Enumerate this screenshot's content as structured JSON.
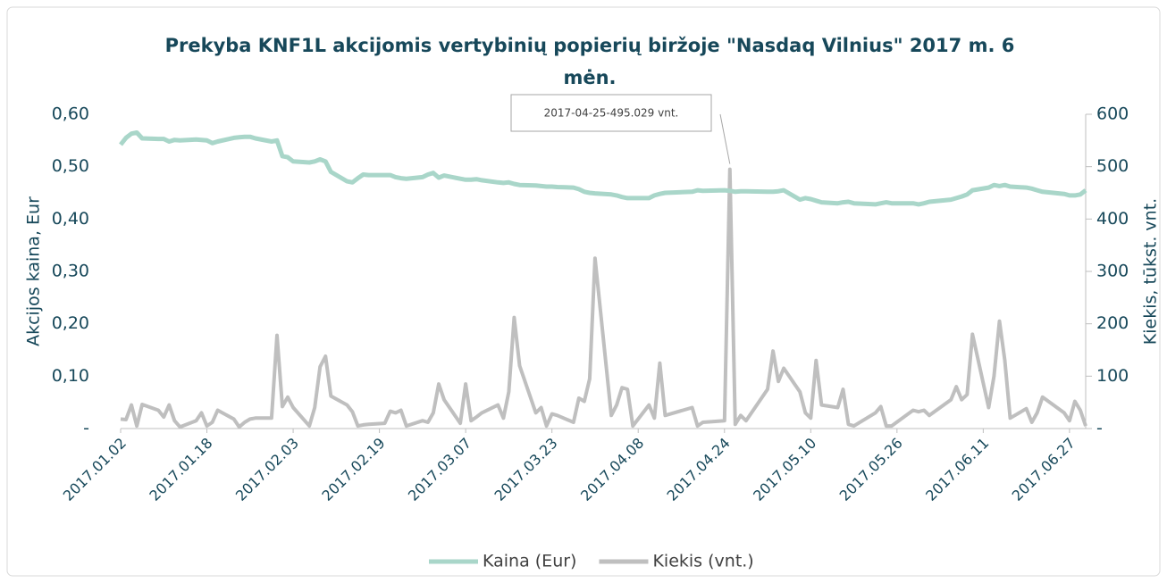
{
  "chart_data": {
    "type": "line",
    "title": "Prekyba KNF1L akcijomis vertybinių popierių biržoje \"Nasdaq Vilnius\" 2017 m. 6",
    "title_line2": "mėn.",
    "ylabel": "Akcijos kaina, Eur",
    "y2label": "Kiekis, tūkst. vnt.",
    "annotation": "2017-04-25-495.029 vnt.",
    "legend": "bottom",
    "x": [
      "2017.01.02",
      "2017.01.03",
      "2017.01.04",
      "2017.01.05",
      "2017.01.06",
      "2017.01.09",
      "2017.01.10",
      "2017.01.11",
      "2017.01.12",
      "2017.01.13",
      "2017.01.16",
      "2017.01.17",
      "2017.01.18",
      "2017.01.19",
      "2017.01.20",
      "2017.01.23",
      "2017.01.24",
      "2017.01.25",
      "2017.01.26",
      "2017.01.27",
      "2017.01.30",
      "2017.01.31",
      "2017.02.01",
      "2017.02.02",
      "2017.02.03",
      "2017.02.06",
      "2017.02.07",
      "2017.02.08",
      "2017.02.09",
      "2017.02.10",
      "2017.02.13",
      "2017.02.14",
      "2017.02.15",
      "2017.02.16",
      "2017.02.17",
      "2017.02.20",
      "2017.02.21",
      "2017.02.22",
      "2017.02.23",
      "2017.02.24",
      "2017.02.27",
      "2017.02.28",
      "2017.03.01",
      "2017.03.02",
      "2017.03.03",
      "2017.03.06",
      "2017.03.07",
      "2017.03.08",
      "2017.03.09",
      "2017.03.10",
      "2017.03.13",
      "2017.03.14",
      "2017.03.15",
      "2017.03.16",
      "2017.03.17",
      "2017.03.20",
      "2017.03.21",
      "2017.03.22",
      "2017.03.23",
      "2017.03.24",
      "2017.03.27",
      "2017.03.28",
      "2017.03.29",
      "2017.03.30",
      "2017.03.31",
      "2017.04.03",
      "2017.04.04",
      "2017.04.05",
      "2017.04.06",
      "2017.04.07",
      "2017.04.10",
      "2017.04.11",
      "2017.04.12",
      "2017.04.13",
      "2017.04.18",
      "2017.04.19",
      "2017.04.20",
      "2017.04.24",
      "2017.04.25",
      "2017.04.26",
      "2017.04.27",
      "2017.04.28",
      "2017.05.02",
      "2017.05.03",
      "2017.05.04",
      "2017.05.05",
      "2017.05.08",
      "2017.05.09",
      "2017.05.10",
      "2017.05.11",
      "2017.05.12",
      "2017.05.15",
      "2017.05.16",
      "2017.05.17",
      "2017.05.18",
      "2017.05.22",
      "2017.05.23",
      "2017.05.24",
      "2017.05.25",
      "2017.05.29",
      "2017.05.30",
      "2017.05.31",
      "2017.06.01",
      "2017.06.05",
      "2017.06.06",
      "2017.06.07",
      "2017.06.08",
      "2017.06.09",
      "2017.06.12",
      "2017.06.13",
      "2017.06.14",
      "2017.06.15",
      "2017.06.16",
      "2017.06.19",
      "2017.06.20",
      "2017.06.21",
      "2017.06.22",
      "2017.06.26",
      "2017.06.27",
      "2017.06.28",
      "2017.06.29",
      "2017.06.30"
    ],
    "series": [
      {
        "name": "Kaina (Eur)",
        "color": "#a9d6c9",
        "axis": "y",
        "values": [
          0.542,
          0.555,
          0.563,
          0.565,
          0.554,
          0.553,
          0.553,
          0.548,
          0.551,
          0.55,
          0.552,
          0.551,
          0.55,
          0.545,
          0.548,
          0.555,
          0.556,
          0.557,
          0.557,
          0.554,
          0.548,
          0.55,
          0.52,
          0.518,
          0.51,
          0.508,
          0.51,
          0.514,
          0.51,
          0.49,
          0.472,
          0.47,
          0.478,
          0.485,
          0.484,
          0.484,
          0.484,
          0.48,
          0.478,
          0.477,
          0.48,
          0.485,
          0.488,
          0.479,
          0.483,
          0.477,
          0.475,
          0.475,
          0.476,
          0.474,
          0.47,
          0.469,
          0.47,
          0.467,
          0.465,
          0.464,
          0.463,
          0.462,
          0.462,
          0.461,
          0.46,
          0.457,
          0.452,
          0.45,
          0.449,
          0.447,
          0.445,
          0.442,
          0.44,
          0.44,
          0.44,
          0.445,
          0.448,
          0.45,
          0.452,
          0.455,
          0.454,
          0.455,
          0.454,
          0.452,
          0.453,
          0.453,
          0.452,
          0.452,
          0.453,
          0.455,
          0.437,
          0.44,
          0.438,
          0.435,
          0.432,
          0.43,
          0.432,
          0.433,
          0.43,
          0.428,
          0.43,
          0.432,
          0.43,
          0.43,
          0.428,
          0.43,
          0.433,
          0.437,
          0.44,
          0.443,
          0.447,
          0.455,
          0.46,
          0.465,
          0.463,
          0.465,
          0.462,
          0.46,
          0.458,
          0.455,
          0.452,
          0.448,
          0.445,
          0.445,
          0.447,
          0.455
        ]
      },
      {
        "name": "Kiekis (vnt.)",
        "color": "#bfbfbf",
        "axis": "y2",
        "values": [
          18,
          17,
          45,
          5,
          46,
          35,
          22,
          45,
          15,
          3,
          15,
          30,
          5,
          12,
          35,
          18,
          3,
          12,
          18,
          20,
          20,
          178,
          42,
          60,
          40,
          5,
          40,
          118,
          138,
          62,
          45,
          32,
          5,
          7,
          8,
          10,
          33,
          30,
          35,
          5,
          15,
          12,
          30,
          85,
          55,
          10,
          85,
          15,
          22,
          30,
          45,
          20,
          70,
          212,
          120,
          30,
          40,
          5,
          28,
          25,
          12,
          58,
          52,
          95,
          325,
          25,
          45,
          78,
          75,
          5,
          45,
          20,
          125,
          25,
          40,
          5,
          12,
          15,
          495.029,
          8,
          25,
          15,
          75,
          148,
          90,
          115,
          70,
          30,
          20,
          130,
          45,
          40,
          75,
          8,
          5,
          30,
          42,
          5,
          5,
          35,
          32,
          35,
          25,
          55,
          80,
          55,
          65,
          180,
          40,
          100,
          205,
          130,
          20,
          38,
          12,
          30,
          60,
          30,
          15,
          52,
          35,
          5
        ]
      }
    ],
    "xlim": [
      "2017.01.02",
      "2017.06.30"
    ],
    "xticks": [
      "2017.01.02",
      "2017.01.18",
      "2017.02.03",
      "2017.02.19",
      "2017.03.07",
      "2017.03.23",
      "2017.04.08",
      "2017.04.24",
      "2017.05.10",
      "2017.05.26",
      "2017.06.11",
      "2017.06.27"
    ],
    "ylim": [
      0,
      0.6
    ],
    "yticks": [
      {
        "value": 0,
        "label": "-"
      },
      {
        "value": 0.1,
        "label": "0,10"
      },
      {
        "value": 0.2,
        "label": "0,20"
      },
      {
        "value": 0.3,
        "label": "0,30"
      },
      {
        "value": 0.4,
        "label": "0,40"
      },
      {
        "value": 0.5,
        "label": "0,50"
      },
      {
        "value": 0.6,
        "label": "0,60"
      }
    ],
    "y2lim": [
      0,
      600
    ],
    "y2ticks": [
      {
        "value": 0,
        "label": "-"
      },
      100,
      200,
      300,
      400,
      500,
      600
    ]
  }
}
